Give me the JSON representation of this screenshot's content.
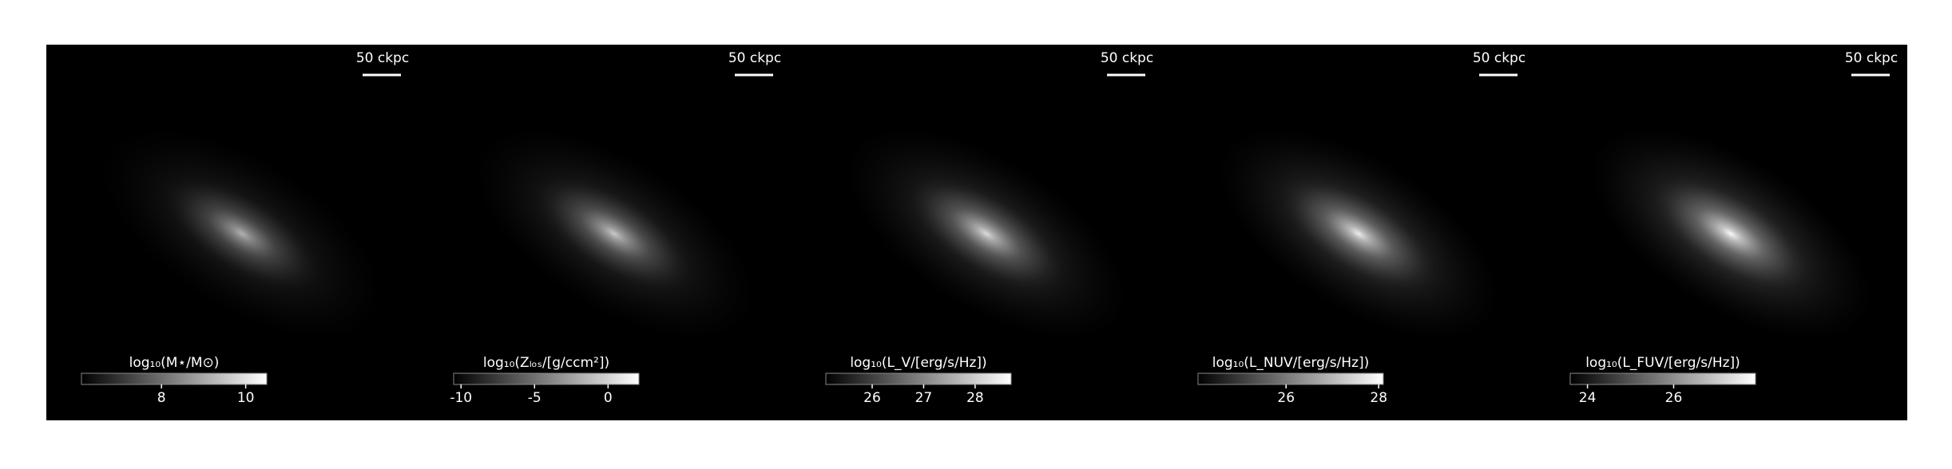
{
  "chart_data": [
    {
      "type": "image",
      "scalebar_label": "50 ckpc",
      "colorbar_label": "log₁₀(M⋆/M⊙)",
      "clim": [
        6.1,
        10.5
      ],
      "ticks": [
        8,
        10
      ]
    },
    {
      "type": "image",
      "scalebar_label": "50 ckpc",
      "colorbar_label": "log₁₀(Zₗₒₛ/[g/ccm²])",
      "clim": [
        -10.5,
        2.1
      ],
      "ticks": [
        -10,
        -5,
        0
      ]
    },
    {
      "type": "image",
      "scalebar_label": "50 ckpc",
      "colorbar_label": "log₁₀(L_V/[erg/s/Hz])",
      "clim": [
        25.1,
        28.7
      ],
      "ticks": [
        26,
        27,
        28
      ]
    },
    {
      "type": "image",
      "scalebar_label": "50 ckpc",
      "colorbar_label": "log₁₀(L_NUV/[erg/s/Hz])",
      "clim": [
        24.1,
        28.1
      ],
      "ticks": [
        26,
        28
      ]
    },
    {
      "type": "image",
      "scalebar_label": "50 ckpc",
      "colorbar_label": "log₁₀(L_FUV/[erg/s/Hz])",
      "clim": [
        23.6,
        27.9
      ],
      "ticks": [
        24,
        26
      ]
    }
  ]
}
